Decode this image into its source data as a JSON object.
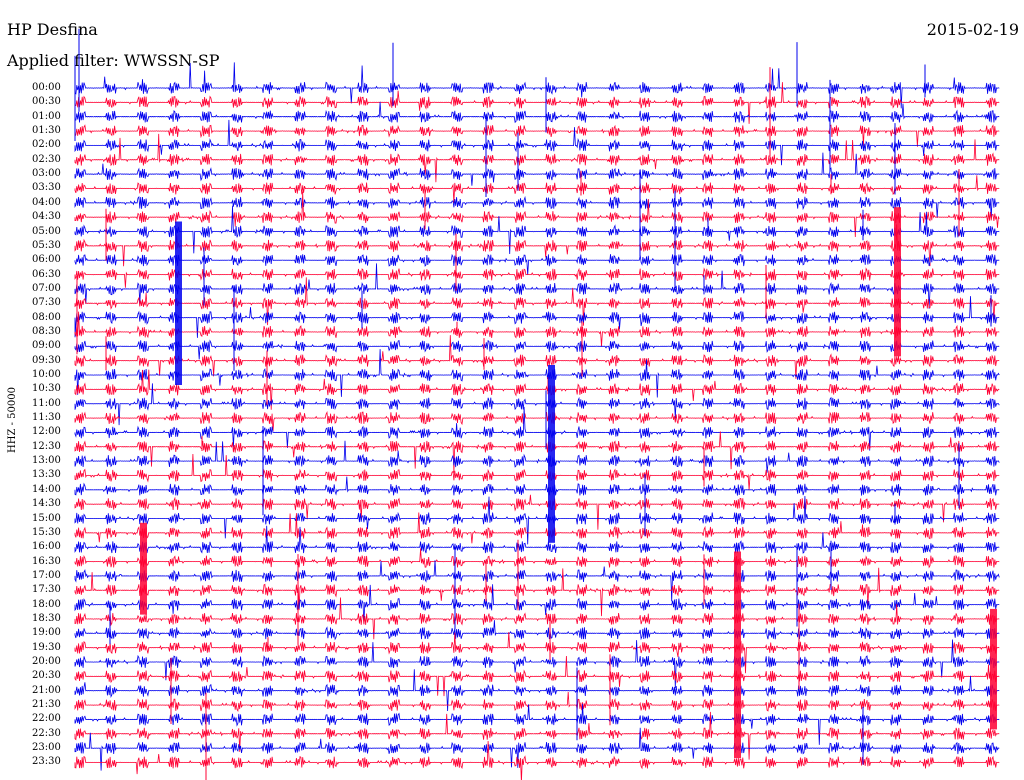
{
  "header": {
    "station": "HP Desfina",
    "date": "2015-02-19",
    "filter": "Applied filter: WWSSN-SP"
  },
  "axis": {
    "channel_label": "HHZ - 50000"
  },
  "time_labels": [
    "00:00",
    "00:30",
    "01:00",
    "01:30",
    "02:00",
    "02:30",
    "03:00",
    "03:30",
    "04:00",
    "04:30",
    "05:00",
    "05:30",
    "06:00",
    "06:30",
    "07:00",
    "07:30",
    "08:00",
    "08:30",
    "09:00",
    "09:30",
    "10:00",
    "10:30",
    "11:00",
    "11:30",
    "12:00",
    "12:30",
    "13:00",
    "13:30",
    "14:00",
    "14:30",
    "15:00",
    "15:30",
    "16:00",
    "16:30",
    "17:00",
    "17:30",
    "18:00",
    "18:30",
    "19:00",
    "19:30",
    "20:00",
    "20:30",
    "21:00",
    "21:30",
    "22:00",
    "22:30",
    "23:00",
    "23:30"
  ],
  "trace_colors": {
    "even_row": "#0000ee",
    "odd_row": "#ff0033"
  }
}
